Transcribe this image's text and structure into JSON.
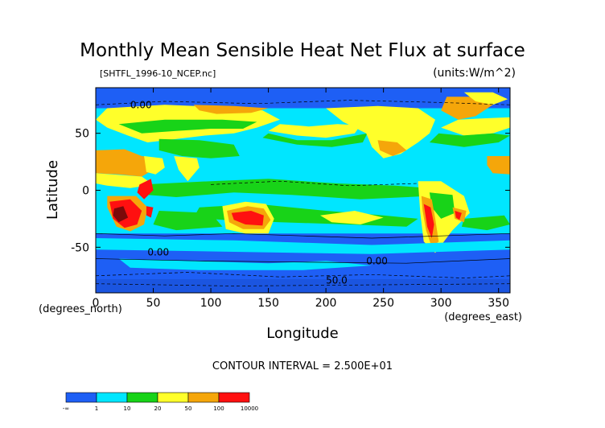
{
  "chart_data": {
    "type": "heatmap",
    "title": "Monthly Mean Sensible Heat Net Flux at surface",
    "source_label": "[SHTFL_1996-10_NCEP.nc]",
    "units_label": "(units:W/m^2)",
    "xlabel": "Longitude",
    "ylabel": "Latitude",
    "x_unit_label": "(degrees_east)",
    "y_unit_label": "(degrees_north)",
    "xlim": [
      0,
      360
    ],
    "ylim": [
      -90,
      90
    ],
    "x_ticks": [
      0,
      50,
      100,
      150,
      200,
      250,
      300,
      350
    ],
    "y_ticks": [
      50,
      0,
      -50
    ],
    "contour_interval": "CONTOUR INTERVAL = 2.500E+01",
    "contour_labels": [
      {
        "text": "0.00",
        "lon": 30,
        "lat": 72
      },
      {
        "text": "0.00",
        "lon": 45,
        "lat": -57
      },
      {
        "text": "0.00",
        "lon": 235,
        "lat": -65
      },
      {
        "text": "50.0",
        "lon": 200,
        "lat": -82
      }
    ],
    "colorbar": {
      "boundaries": [
        "-∞",
        "1",
        "10",
        "20",
        "50",
        "100",
        "10000"
      ],
      "colors": [
        "#1e5ff5",
        "#00e6ff",
        "#18d318",
        "#ffff2a",
        "#f5a60a",
        "#ff1010"
      ]
    },
    "map_colors": {
      "ocean_low": "#1e5ff5",
      "ocean_mid": "#00e6ff",
      "ocean_warm": "#18d318",
      "yellow": "#ffff2a",
      "orange": "#f5a60a",
      "red": "#ff1010",
      "dark": "#7a0a0a"
    }
  }
}
